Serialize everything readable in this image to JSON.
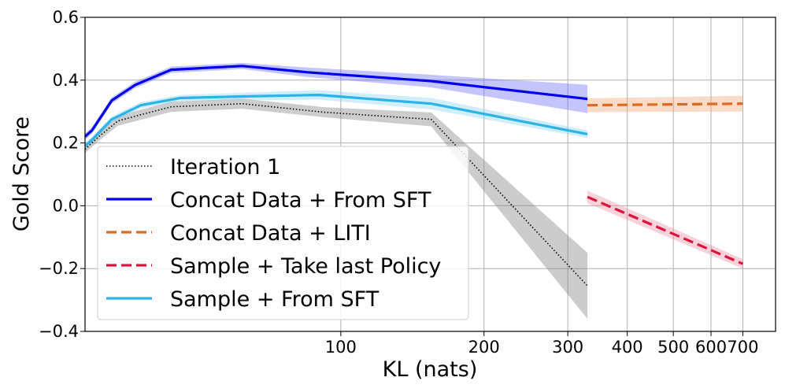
{
  "chart_data": {
    "type": "line",
    "title": "",
    "xlabel": "KL (nats)",
    "ylabel": "Gold Score",
    "xscale": "log",
    "xlim": [
      29,
      820
    ],
    "ylim": [
      -0.4,
      0.6
    ],
    "grid": true,
    "legend_position": "lower-left",
    "xticks": [
      {
        "value": 100,
        "label": "100"
      },
      {
        "value": 200,
        "label": "200"
      },
      {
        "value": 300,
        "label": "300"
      },
      {
        "value": 400,
        "label": "400"
      },
      {
        "value": 500,
        "label": "500"
      },
      {
        "value": 600,
        "label": "600"
      },
      {
        "value": 700,
        "label": "700"
      }
    ],
    "yticks": [
      {
        "value": -0.4,
        "label": "−0.4"
      },
      {
        "value": -0.2,
        "label": "−0.2"
      },
      {
        "value": 0.0,
        "label": "0.0"
      },
      {
        "value": 0.2,
        "label": "0.2"
      },
      {
        "value": 0.4,
        "label": "0.4"
      },
      {
        "value": 0.6,
        "label": "0.6"
      }
    ],
    "series": [
      {
        "name": "Iteration 1",
        "color": "#000000",
        "band_color": "#808080",
        "style": "dotted",
        "x": [
          29,
          31,
          34,
          38,
          44,
          52,
          62,
          92,
          155,
          330
        ],
        "y": [
          0.18,
          0.22,
          0.27,
          0.29,
          0.315,
          0.32,
          0.325,
          0.298,
          0.275,
          -0.255
        ],
        "band": [
          0.012,
          0.014,
          0.015,
          0.016,
          0.016,
          0.016,
          0.016,
          0.016,
          0.022,
          0.105
        ]
      },
      {
        "name": "Concat Data + From SFT",
        "color": "#0000ee",
        "band_color": "#6b6bff",
        "style": "solid",
        "x": [
          29,
          30,
          33,
          37,
          44,
          62,
          85,
          155,
          330
        ],
        "y": [
          0.22,
          0.24,
          0.335,
          0.385,
          0.433,
          0.445,
          0.425,
          0.397,
          0.34
        ],
        "band": [
          0.01,
          0.01,
          0.01,
          0.01,
          0.01,
          0.01,
          0.015,
          0.02,
          0.045
        ]
      },
      {
        "name": "Concat Data + LITI",
        "color": "#e06a1c",
        "band_color": "#f3a676",
        "style": "dashed",
        "x": [
          330,
          700
        ],
        "y": [
          0.32,
          0.325
        ],
        "band": [
          0.022,
          0.025
        ]
      },
      {
        "name": "Sample + Take last Policy",
        "color": "#dc143c",
        "band_color": "#ee8ea3",
        "style": "dashed",
        "x": [
          330,
          700
        ],
        "y": [
          0.028,
          -0.185
        ],
        "band": [
          0.02,
          0.015
        ]
      },
      {
        "name": "Sample + From SFT",
        "color": "#2ab4e6",
        "band_color": "#86d3f2",
        "style": "solid",
        "x": [
          29,
          30,
          33,
          38,
          46,
          62,
          90,
          155,
          330
        ],
        "y": [
          0.19,
          0.21,
          0.275,
          0.32,
          0.343,
          0.348,
          0.353,
          0.325,
          0.228
        ],
        "band": [
          0.01,
          0.01,
          0.01,
          0.01,
          0.01,
          0.012,
          0.015,
          0.018,
          0.012
        ]
      }
    ]
  }
}
